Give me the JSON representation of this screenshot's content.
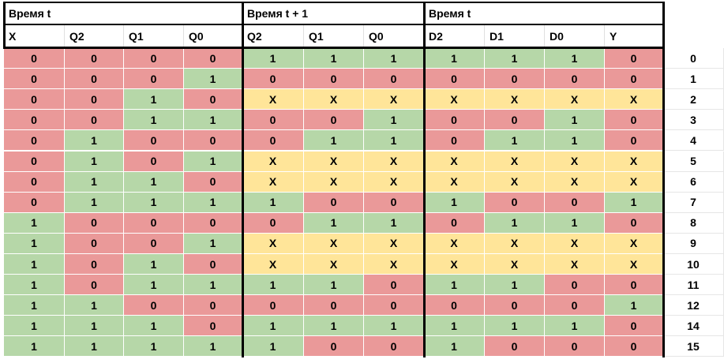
{
  "header": {
    "groups": [
      "Время t",
      "Время t + 1",
      "Время t"
    ],
    "columns": [
      "X",
      "Q2",
      "Q1",
      "Q0",
      "Q2",
      "Q1",
      "Q0",
      "D2",
      "D1",
      "D0",
      "Y"
    ]
  },
  "colors": {
    "0": "#ea9999",
    "1": "#b6d7a8",
    "X": "#ffe599"
  },
  "table": {
    "rows": [
      {
        "label": "0",
        "cells": [
          "0",
          "0",
          "0",
          "0",
          "1",
          "1",
          "1",
          "1",
          "1",
          "1",
          "0"
        ]
      },
      {
        "label": "1",
        "cells": [
          "0",
          "0",
          "0",
          "1",
          "0",
          "0",
          "0",
          "0",
          "0",
          "0",
          "0"
        ]
      },
      {
        "label": "2",
        "cells": [
          "0",
          "0",
          "1",
          "0",
          "X",
          "X",
          "X",
          "X",
          "X",
          "X",
          "X"
        ]
      },
      {
        "label": "3",
        "cells": [
          "0",
          "0",
          "1",
          "1",
          "0",
          "0",
          "1",
          "0",
          "0",
          "1",
          "0"
        ]
      },
      {
        "label": "4",
        "cells": [
          "0",
          "1",
          "0",
          "0",
          "0",
          "1",
          "1",
          "0",
          "1",
          "1",
          "0"
        ]
      },
      {
        "label": "5",
        "cells": [
          "0",
          "1",
          "0",
          "1",
          "X",
          "X",
          "X",
          "X",
          "X",
          "X",
          "X"
        ]
      },
      {
        "label": "6",
        "cells": [
          "0",
          "1",
          "1",
          "0",
          "X",
          "X",
          "X",
          "X",
          "X",
          "X",
          "X"
        ]
      },
      {
        "label": "7",
        "cells": [
          "0",
          "1",
          "1",
          "1",
          "1",
          "0",
          "0",
          "1",
          "0",
          "0",
          "1"
        ]
      },
      {
        "label": "8",
        "cells": [
          "1",
          "0",
          "0",
          "0",
          "0",
          "1",
          "1",
          "0",
          "1",
          "1",
          "0"
        ]
      },
      {
        "label": "9",
        "cells": [
          "1",
          "0",
          "0",
          "1",
          "X",
          "X",
          "X",
          "X",
          "X",
          "X",
          "X"
        ]
      },
      {
        "label": "10",
        "cells": [
          "1",
          "0",
          "1",
          "0",
          "X",
          "X",
          "X",
          "X",
          "X",
          "X",
          "X"
        ]
      },
      {
        "label": "11",
        "cells": [
          "1",
          "0",
          "1",
          "1",
          "1",
          "1",
          "0",
          "1",
          "1",
          "0",
          "0"
        ]
      },
      {
        "label": "12",
        "cells": [
          "1",
          "1",
          "0",
          "0",
          "0",
          "0",
          "0",
          "0",
          "0",
          "0",
          "1"
        ]
      },
      {
        "label": "14",
        "cells": [
          "1",
          "1",
          "1",
          "0",
          "1",
          "1",
          "1",
          "1",
          "1",
          "1",
          "0"
        ]
      },
      {
        "label": "15",
        "cells": [
          "1",
          "1",
          "1",
          "1",
          "1",
          "0",
          "0",
          "1",
          "0",
          "0",
          "0"
        ]
      }
    ]
  }
}
